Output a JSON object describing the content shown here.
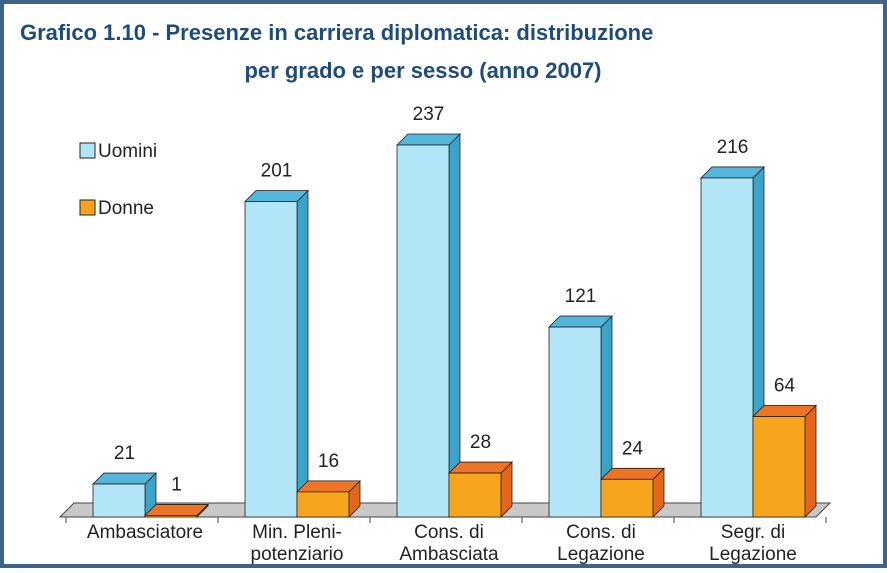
{
  "chart_data": {
    "type": "bar3d",
    "title": [
      "Grafico 1.10 - Presenze in carriera diplomatica: distribuzione",
      "per grado e per sesso (anno 2007)"
    ],
    "categories": [
      [
        "Ambasciatore"
      ],
      [
        "Min. Pleni-",
        "potenziario"
      ],
      [
        "Cons. di",
        "Ambasciata"
      ],
      [
        "Cons. di",
        "Legazione"
      ],
      [
        "Segr. di",
        "Legazione"
      ]
    ],
    "series": [
      {
        "name": "Uomini",
        "color": "#b3e5f9",
        "values": [
          21,
          201,
          237,
          121,
          216
        ]
      },
      {
        "name": "Donne",
        "color": "#f7a51f",
        "values": [
          1,
          16,
          28,
          24,
          64
        ]
      }
    ]
  }
}
